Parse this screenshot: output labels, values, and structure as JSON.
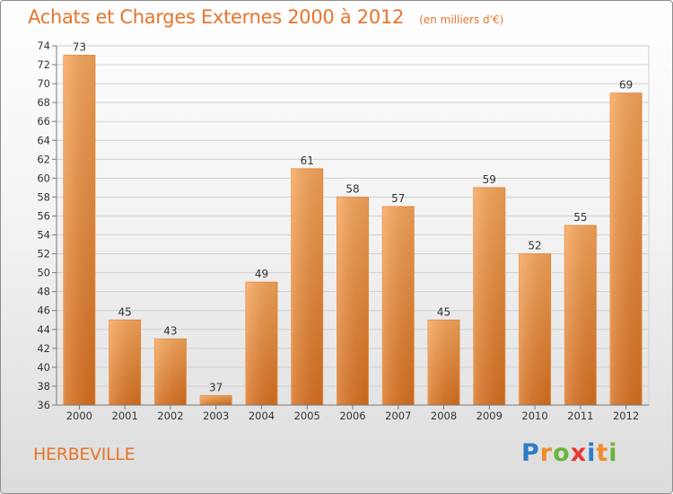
{
  "header": {
    "title": "Achats et Charges Externes 2000 à 2012",
    "subtitle": "(en milliers d'€)"
  },
  "commune": "HERBEVILLE",
  "logo": {
    "text": "Proxiti",
    "letters": [
      "P",
      "r",
      "o",
      "x",
      "i",
      "t",
      "i"
    ],
    "colors": [
      "#2e7bc4",
      "#f28c28",
      "#6cb33f",
      "#e53935",
      "#2e7bc4",
      "#f28c28",
      "#6cb33f"
    ]
  },
  "chart_data": {
    "type": "bar",
    "title": "Achats et Charges Externes 2000 à 2012",
    "subtitle": "(en milliers d'€)",
    "categories": [
      "2000",
      "2001",
      "2002",
      "2003",
      "2004",
      "2005",
      "2006",
      "2007",
      "2008",
      "2009",
      "2010",
      "2011",
      "2012"
    ],
    "values": [
      73,
      45,
      43,
      37,
      49,
      61,
      58,
      57,
      45,
      59,
      52,
      55,
      69
    ],
    "ylim": [
      36,
      74
    ],
    "yticks": [
      36,
      38,
      40,
      42,
      44,
      46,
      48,
      50,
      52,
      54,
      56,
      58,
      60,
      62,
      64,
      66,
      68,
      70,
      72,
      74
    ],
    "grid": true,
    "bar_color": "#f0882e"
  }
}
